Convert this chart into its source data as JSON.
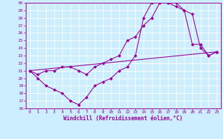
{
  "xlabel": "Windchill (Refroidissement éolien,°C)",
  "bg_color": "#cceeff",
  "line_color": "#990099",
  "xlim": [
    -0.5,
    23.5
  ],
  "ylim": [
    16,
    30
  ],
  "xticks": [
    0,
    1,
    2,
    3,
    4,
    5,
    6,
    7,
    8,
    9,
    10,
    11,
    12,
    13,
    14,
    15,
    16,
    17,
    18,
    19,
    20,
    21,
    22,
    23
  ],
  "yticks": [
    16,
    17,
    18,
    19,
    20,
    21,
    22,
    23,
    24,
    25,
    26,
    27,
    28,
    29,
    30
  ],
  "series1_x": [
    0,
    1,
    2,
    3,
    4,
    5,
    6,
    7,
    8,
    9,
    10,
    11,
    12,
    13,
    14,
    15,
    16,
    17,
    18,
    19,
    20,
    21,
    22,
    23
  ],
  "series1_y": [
    21,
    20,
    19,
    18.5,
    18,
    17,
    16.5,
    17.5,
    19,
    19.5,
    20,
    21,
    21.5,
    23,
    28,
    30,
    30,
    30,
    29.5,
    29,
    24.5,
    24.5,
    23,
    23.5
  ],
  "series2_x": [
    0,
    1,
    2,
    3,
    4,
    5,
    6,
    7,
    8,
    9,
    10,
    11,
    12,
    13,
    14,
    15,
    16,
    17,
    18,
    19,
    20,
    21,
    22,
    23
  ],
  "series2_y": [
    21,
    20.5,
    21,
    21,
    21.5,
    21.5,
    21,
    20.5,
    21.5,
    22,
    22.5,
    23,
    25,
    25.5,
    27,
    28,
    30,
    30,
    30,
    29,
    28.5,
    24,
    23,
    23.5
  ],
  "series3_x": [
    0,
    23
  ],
  "series3_y": [
    21,
    23.5
  ],
  "marker": "D",
  "markersize": 2.0,
  "linewidth": 0.8,
  "axis_fontsize": 5.5,
  "tick_fontsize": 4.5
}
